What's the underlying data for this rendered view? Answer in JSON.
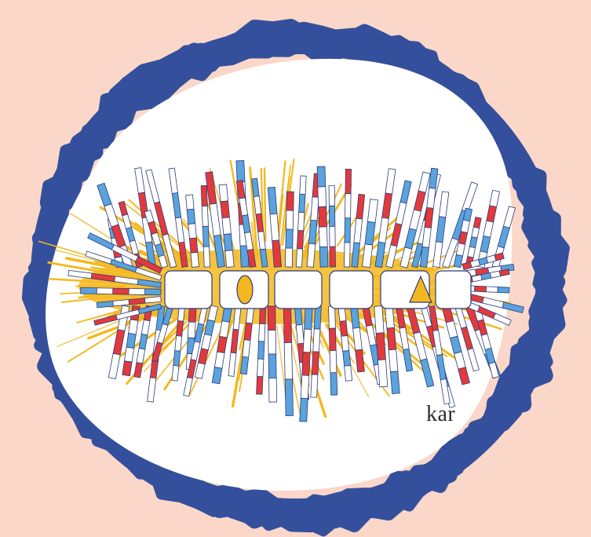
{
  "artwork": {
    "caption_fragment": "kar",
    "word_letters": [
      "O",
      "A"
    ],
    "colors": {
      "background": "#fad7c9",
      "frame": "#34509c",
      "disc": "#ffffff",
      "burst": "#f4b81f",
      "stripe_red": "#e23a3c",
      "stripe_blue": "#5aa3dd",
      "stripe_white": "#ffffff",
      "outline": "#2b3b7a"
    },
    "icons": [
      "scribble-frame",
      "starburst-logo"
    ]
  }
}
